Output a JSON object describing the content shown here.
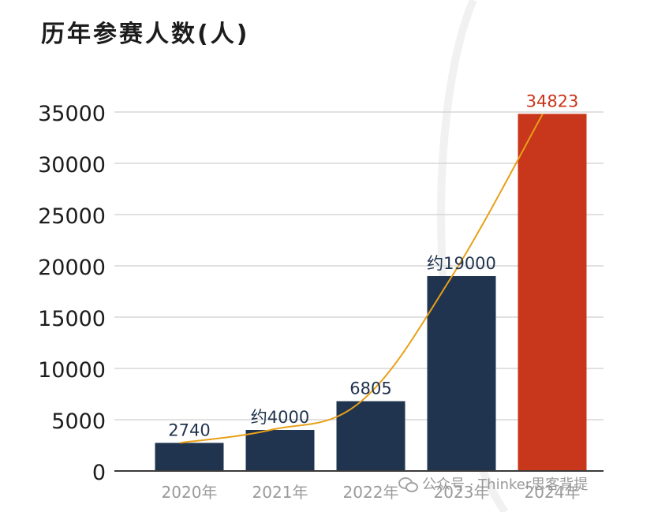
{
  "chart_data": {
    "type": "bar",
    "title": "历年参赛人数(人)",
    "categories": [
      "2020年",
      "2021年",
      "2022年",
      "2023年",
      "2024年"
    ],
    "values": [
      2740,
      4000,
      6805,
      19000,
      34823
    ],
    "data_labels": [
      "2740",
      "约4000",
      "6805",
      "约19000",
      "34823"
    ],
    "bar_colors": [
      "#21344f",
      "#21344f",
      "#21344f",
      "#21344f",
      "#c8371b"
    ],
    "label_colors": [
      "#21344f",
      "#21344f",
      "#21344f",
      "#21344f",
      "#c8371b"
    ],
    "trend_line_color": "#e8a019",
    "ylim": [
      0,
      35000
    ],
    "yticks": [
      "0",
      "5000",
      "10000",
      "15000",
      "20000",
      "25000",
      "30000",
      "35000"
    ],
    "ytick_values": [
      0,
      5000,
      10000,
      15000,
      20000,
      25000,
      30000,
      35000
    ],
    "grid": true,
    "legend": "none"
  },
  "watermark": {
    "text": "公众号 · Thinker思客背提"
  }
}
